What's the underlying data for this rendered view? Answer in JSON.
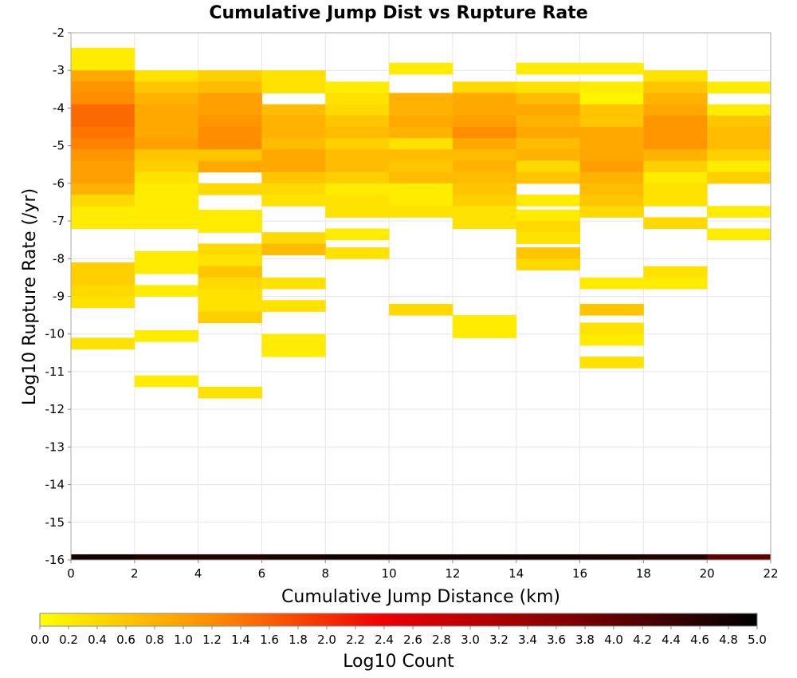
{
  "chart_data": {
    "type": "heatmap",
    "title": "Cumulative Jump Dist vs Rupture Rate",
    "xlabel": "Cumulative Jump Distance (km)",
    "ylabel": "Log10 Rupture Rate (/yr)",
    "xlim": [
      0,
      22
    ],
    "ylim": [
      -16,
      -2
    ],
    "x_ticks": [
      "0",
      "2",
      "4",
      "6",
      "8",
      "10",
      "12",
      "14",
      "16",
      "18",
      "20",
      "22"
    ],
    "y_ticks": [
      "-2",
      "-3",
      "-4",
      "-5",
      "-6",
      "-7",
      "-8",
      "-9",
      "-10",
      "-11",
      "-12",
      "-13",
      "-14",
      "-15",
      "-16"
    ],
    "x_bin_width": 2,
    "y_bin_height": 0.3,
    "grid": true,
    "colorbar": {
      "label": "Log10 Count",
      "range": [
        0,
        5
      ],
      "ticks": [
        "0.0",
        "0.2",
        "0.4",
        "0.6",
        "0.8",
        "1.0",
        "1.2",
        "1.4",
        "1.6",
        "1.8",
        "2.0",
        "2.2",
        "2.4",
        "2.6",
        "2.8",
        "3.0",
        "3.2",
        "3.4",
        "3.6",
        "3.8",
        "4.0",
        "4.2",
        "4.4",
        "4.6",
        "4.8",
        "5.0"
      ],
      "colors": [
        "#ffff00",
        "#ff8800",
        "#ee0000",
        "#880000",
        "#000000"
      ]
    },
    "columns": [
      {
        "x_start": 0,
        "cells": [
          [
            -2.7,
            0.2
          ],
          [
            -3.0,
            0.2
          ],
          [
            -3.3,
            0.9
          ],
          [
            -3.6,
            1.1
          ],
          [
            -3.9,
            1.2
          ],
          [
            -4.2,
            1.5
          ],
          [
            -4.5,
            1.5
          ],
          [
            -4.8,
            1.4
          ],
          [
            -5.1,
            1.3
          ],
          [
            -5.4,
            1.1
          ],
          [
            -5.7,
            1.0
          ],
          [
            -6.0,
            1.0
          ],
          [
            -6.3,
            0.8
          ],
          [
            -6.6,
            0.4
          ],
          [
            -6.9,
            0.2
          ],
          [
            -7.2,
            0.2
          ],
          [
            -8.4,
            0.5
          ],
          [
            -8.7,
            0.5
          ],
          [
            -9.0,
            0.4
          ],
          [
            -9.3,
            0.3
          ],
          [
            -10.4,
            0.3
          ],
          [
            -16.0,
            4.8
          ]
        ]
      },
      {
        "x_start": 2,
        "cells": [
          [
            -3.3,
            0.3
          ],
          [
            -3.6,
            0.6
          ],
          [
            -3.9,
            0.8
          ],
          [
            -4.2,
            0.9
          ],
          [
            -4.5,
            0.9
          ],
          [
            -4.8,
            0.9
          ],
          [
            -5.1,
            1.0
          ],
          [
            -5.4,
            0.6
          ],
          [
            -5.7,
            0.5
          ],
          [
            -6.0,
            0.3
          ],
          [
            -6.3,
            0.2
          ],
          [
            -6.6,
            0.2
          ],
          [
            -6.9,
            0.2
          ],
          [
            -7.2,
            0.2
          ],
          [
            -8.1,
            0.2
          ],
          [
            -8.4,
            0.2
          ],
          [
            -9.0,
            0.2
          ],
          [
            -10.2,
            0.2
          ],
          [
            -11.4,
            0.2
          ],
          [
            -16.0,
            4.6
          ]
        ]
      },
      {
        "x_start": 4,
        "cells": [
          [
            -3.3,
            0.5
          ],
          [
            -3.6,
            0.7
          ],
          [
            -3.9,
            1.0
          ],
          [
            -4.2,
            1.0
          ],
          [
            -4.5,
            1.1
          ],
          [
            -4.8,
            1.2
          ],
          [
            -5.1,
            1.2
          ],
          [
            -5.4,
            0.6
          ],
          [
            -5.7,
            0.9
          ],
          [
            -6.3,
            0.4
          ],
          [
            -7.0,
            0.2
          ],
          [
            -7.3,
            0.2
          ],
          [
            -7.9,
            0.4
          ],
          [
            -8.2,
            0.3
          ],
          [
            -8.5,
            0.6
          ],
          [
            -8.8,
            0.4
          ],
          [
            -9.1,
            0.3
          ],
          [
            -9.4,
            0.3
          ],
          [
            -9.7,
            0.5
          ],
          [
            -11.7,
            0.3
          ],
          [
            -16.0,
            4.6
          ]
        ]
      },
      {
        "x_start": 6,
        "cells": [
          [
            -3.3,
            0.3
          ],
          [
            -3.6,
            0.3
          ],
          [
            -4.2,
            0.7
          ],
          [
            -4.5,
            0.8
          ],
          [
            -4.8,
            0.8
          ],
          [
            -5.1,
            0.7
          ],
          [
            -5.4,
            0.9
          ],
          [
            -5.7,
            0.9
          ],
          [
            -6.0,
            0.6
          ],
          [
            -6.3,
            0.4
          ],
          [
            -6.6,
            0.3
          ],
          [
            -7.6,
            0.4
          ],
          [
            -7.9,
            0.7
          ],
          [
            -8.8,
            0.3
          ],
          [
            -9.4,
            0.3
          ],
          [
            -10.3,
            0.2
          ],
          [
            -10.6,
            0.2
          ],
          [
            -16.0,
            4.7
          ]
        ]
      },
      {
        "x_start": 8,
        "cells": [
          [
            -3.6,
            0.2
          ],
          [
            -3.9,
            0.3
          ],
          [
            -4.2,
            0.4
          ],
          [
            -4.5,
            0.6
          ],
          [
            -4.8,
            0.7
          ],
          [
            -5.1,
            0.5
          ],
          [
            -5.4,
            0.7
          ],
          [
            -5.7,
            0.7
          ],
          [
            -6.0,
            0.5
          ],
          [
            -6.3,
            0.2
          ],
          [
            -6.6,
            0.3
          ],
          [
            -6.9,
            0.3
          ],
          [
            -7.5,
            0.2
          ],
          [
            -8.0,
            0.3
          ],
          [
            -16.0,
            4.8
          ]
        ]
      },
      {
        "x_start": 10,
        "cells": [
          [
            -3.1,
            0.2
          ],
          [
            -3.9,
            0.8
          ],
          [
            -4.2,
            0.8
          ],
          [
            -4.5,
            0.9
          ],
          [
            -4.8,
            0.8
          ],
          [
            -5.1,
            0.3
          ],
          [
            -5.4,
            0.7
          ],
          [
            -5.7,
            0.6
          ],
          [
            -6.0,
            0.7
          ],
          [
            -6.3,
            0.2
          ],
          [
            -6.6,
            0.2
          ],
          [
            -6.9,
            0.3
          ],
          [
            -9.5,
            0.4
          ],
          [
            -16.0,
            4.8
          ]
        ]
      },
      {
        "x_start": 12,
        "cells": [
          [
            -3.6,
            0.4
          ],
          [
            -3.9,
            0.9
          ],
          [
            -4.2,
            0.9
          ],
          [
            -4.5,
            1.0
          ],
          [
            -4.8,
            1.2
          ],
          [
            -5.1,
            0.9
          ],
          [
            -5.4,
            0.7
          ],
          [
            -5.7,
            0.8
          ],
          [
            -6.0,
            0.7
          ],
          [
            -6.3,
            0.6
          ],
          [
            -6.6,
            0.5
          ],
          [
            -6.9,
            0.3
          ],
          [
            -7.2,
            0.3
          ],
          [
            -9.8,
            0.2
          ],
          [
            -10.1,
            0.2
          ],
          [
            -16.0,
            4.8
          ]
        ]
      },
      {
        "x_start": 14,
        "cells": [
          [
            -3.1,
            0.2
          ],
          [
            -3.6,
            0.3
          ],
          [
            -3.9,
            0.7
          ],
          [
            -4.2,
            0.9
          ],
          [
            -4.5,
            0.8
          ],
          [
            -4.8,
            0.9
          ],
          [
            -5.1,
            0.7
          ],
          [
            -5.4,
            0.8
          ],
          [
            -5.7,
            0.4
          ],
          [
            -6.0,
            0.6
          ],
          [
            -6.6,
            0.2
          ],
          [
            -7.0,
            0.2
          ],
          [
            -7.3,
            0.4
          ],
          [
            -7.6,
            0.3
          ],
          [
            -8.0,
            0.6
          ],
          [
            -8.3,
            0.4
          ],
          [
            -16.0,
            4.8
          ]
        ]
      },
      {
        "x_start": 16,
        "cells": [
          [
            -3.1,
            0.2
          ],
          [
            -3.6,
            0.2
          ],
          [
            -3.9,
            0.1
          ],
          [
            -4.2,
            0.6
          ],
          [
            -4.5,
            0.6
          ],
          [
            -4.8,
            0.9
          ],
          [
            -5.1,
            0.9
          ],
          [
            -5.4,
            0.9
          ],
          [
            -5.7,
            1.0
          ],
          [
            -6.0,
            0.8
          ],
          [
            -6.3,
            0.7
          ],
          [
            -6.6,
            0.6
          ],
          [
            -6.9,
            0.4
          ],
          [
            -8.8,
            0.2
          ],
          [
            -9.5,
            0.6
          ],
          [
            -10.0,
            0.3
          ],
          [
            -10.3,
            0.2
          ],
          [
            -10.9,
            0.3
          ],
          [
            -16.0,
            4.7
          ]
        ]
      },
      {
        "x_start": 18,
        "cells": [
          [
            -3.3,
            0.3
          ],
          [
            -3.6,
            0.6
          ],
          [
            -3.9,
            0.8
          ],
          [
            -4.2,
            0.9
          ],
          [
            -4.5,
            1.1
          ],
          [
            -4.8,
            1.1
          ],
          [
            -5.1,
            1.1
          ],
          [
            -5.4,
            0.8
          ],
          [
            -5.7,
            0.5
          ],
          [
            -6.0,
            0.2
          ],
          [
            -6.3,
            0.3
          ],
          [
            -6.6,
            0.3
          ],
          [
            -7.2,
            0.4
          ],
          [
            -8.5,
            0.3
          ],
          [
            -8.8,
            0.2
          ],
          [
            -16.0,
            4.6
          ]
        ]
      },
      {
        "x_start": 20,
        "cells": [
          [
            -3.6,
            0.2
          ],
          [
            -4.2,
            0.2
          ],
          [
            -4.5,
            0.6
          ],
          [
            -4.8,
            0.7
          ],
          [
            -5.1,
            0.7
          ],
          [
            -5.4,
            0.5
          ],
          [
            -5.7,
            0.2
          ],
          [
            -6.0,
            0.5
          ],
          [
            -6.9,
            0.2
          ],
          [
            -7.5,
            0.2
          ],
          [
            -16.0,
            4.0
          ]
        ]
      }
    ]
  }
}
